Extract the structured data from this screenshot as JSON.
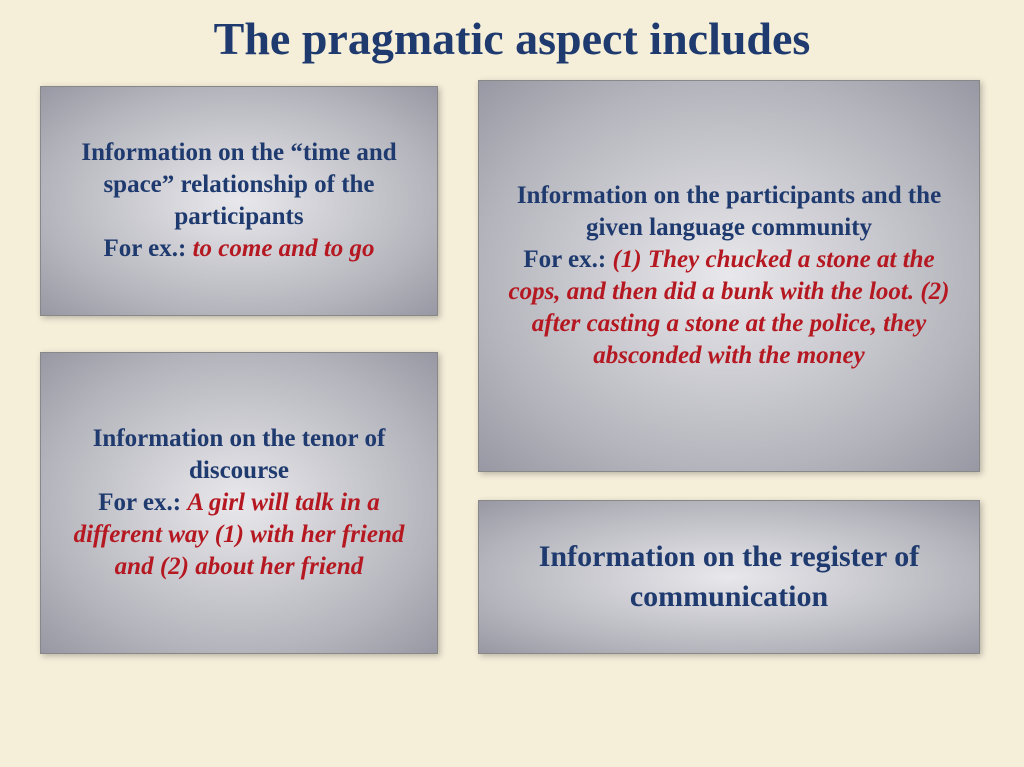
{
  "title": "The pragmatic aspect includes",
  "colors": {
    "page_bg": "#f5eed9",
    "title_color": "#1e3a6e",
    "text_navy": "#1e3a6e",
    "text_red": "#b51820",
    "box_grad_inner": "#e8e8ec",
    "box_grad_mid": "#b4b4bc",
    "box_grad_outer": "#9898a4"
  },
  "box1": {
    "main": "Information on the “time and space” relationship of the participants",
    "ex_label": "For ex.: ",
    "ex": "to come and to go"
  },
  "box2": {
    "main": "Information on the tenor of discourse",
    "ex_label": "For ex.: ",
    "ex": "A girl will talk in a different way (1) with her friend and (2) about her friend"
  },
  "box3": {
    "main": "Information on the participants and the given language community",
    "ex_label": "For ex.: ",
    "ex": "(1) They chucked a stone at the cops, and then did a bunk with the loot. (2) after casting a stone at the police, they absconded with the money"
  },
  "box4": {
    "main": "Information on the register of communication"
  }
}
